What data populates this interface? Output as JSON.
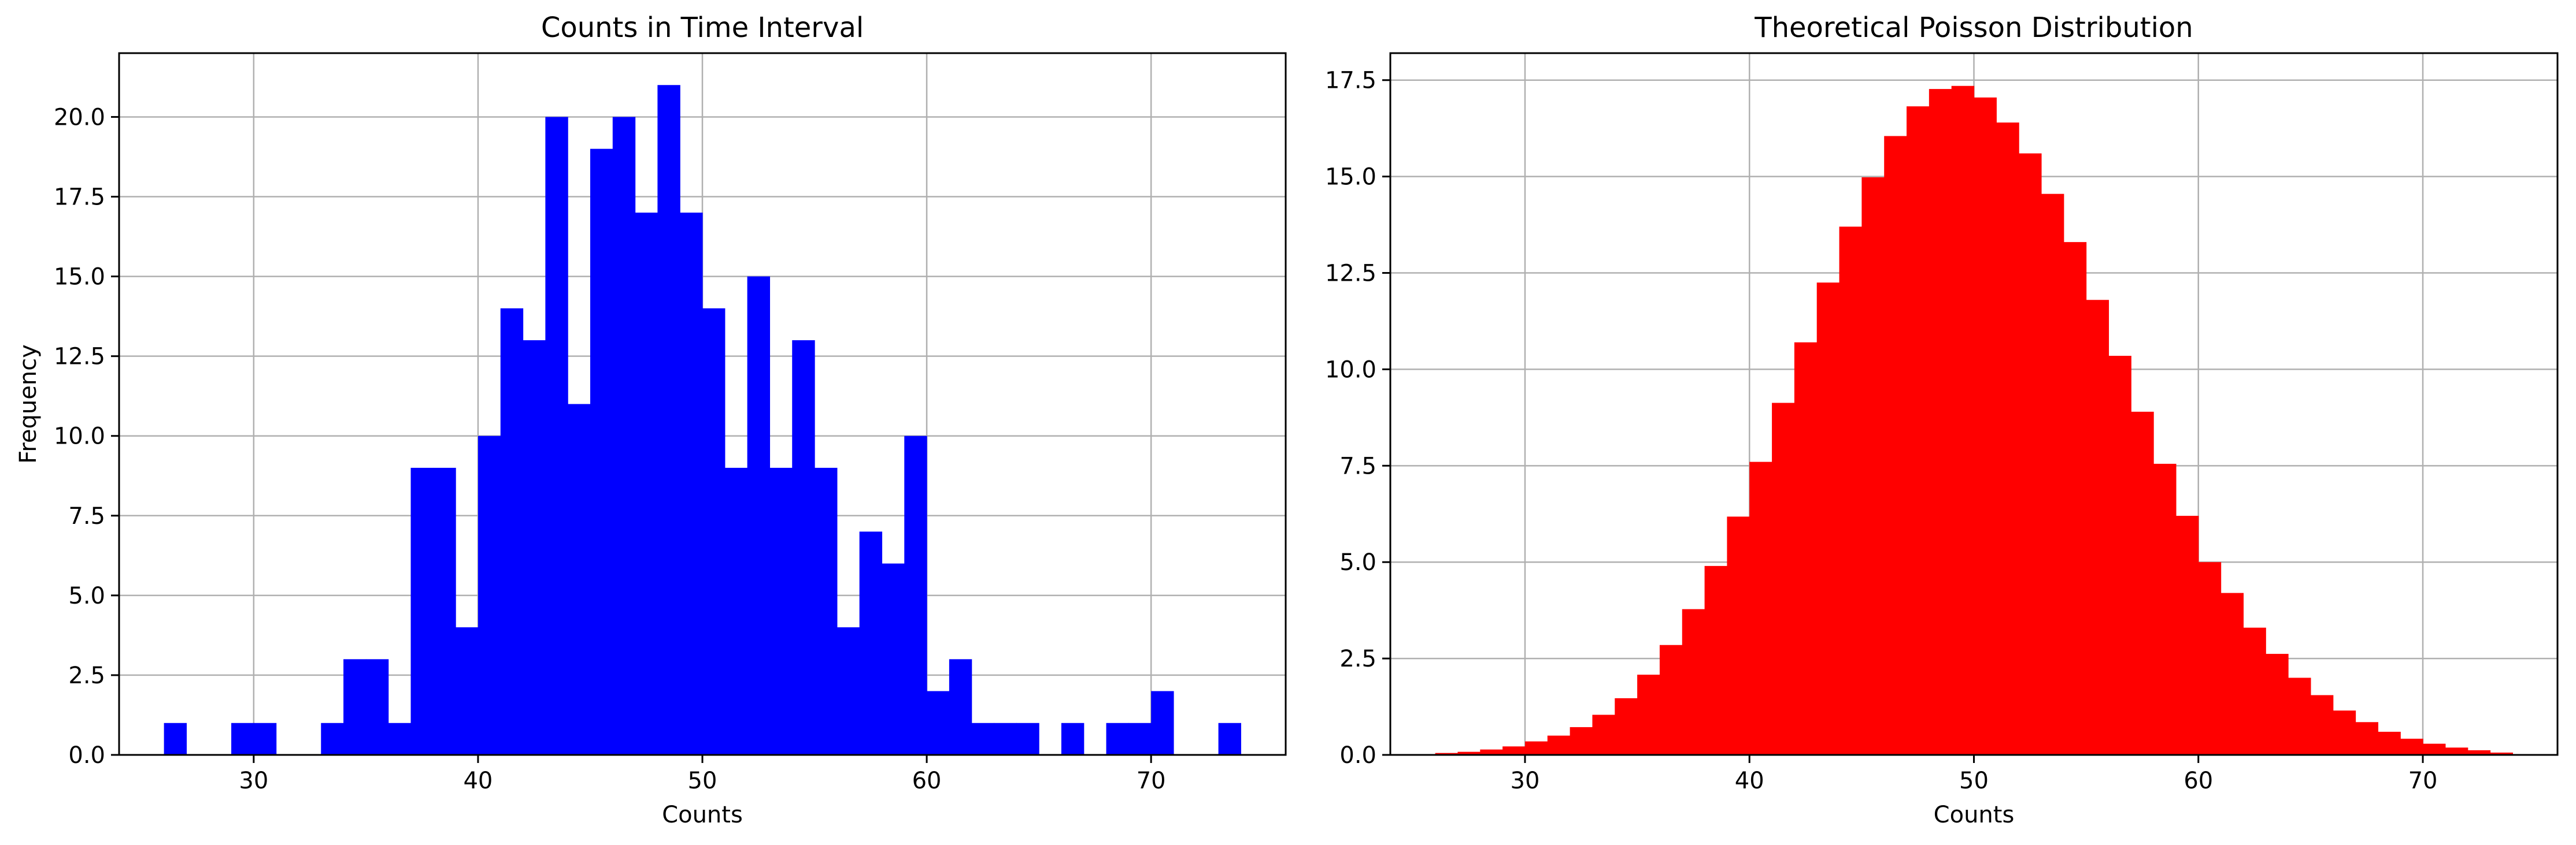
{
  "chart_data": [
    {
      "type": "bar",
      "title": "Counts in Time Interval",
      "xlabel": "Counts",
      "ylabel": "Frequency",
      "xlim": [
        24,
        76
      ],
      "ylim": [
        0,
        22
      ],
      "bin_width": 1,
      "grid": true,
      "color": "#0000ff",
      "xticks": [
        30,
        40,
        50,
        60,
        70
      ],
      "xtick_labels": [
        "30",
        "40",
        "50",
        "60",
        "70"
      ],
      "yticks": [
        0,
        2.5,
        5,
        7.5,
        10,
        12.5,
        15,
        17.5,
        20
      ],
      "ytick_labels": [
        "0.0",
        "2.5",
        "5.0",
        "7.5",
        "10.0",
        "12.5",
        "15.0",
        "17.5",
        "20.0"
      ],
      "x": [
        26.5,
        27.5,
        28.5,
        29.5,
        30.5,
        31.5,
        32.5,
        33.5,
        34.5,
        35.5,
        36.5,
        37.5,
        38.5,
        39.5,
        40.5,
        41.5,
        42.5,
        43.5,
        44.5,
        45.5,
        46.5,
        47.5,
        48.5,
        49.5,
        50.5,
        51.5,
        52.5,
        53.5,
        54.5,
        55.5,
        56.5,
        57.5,
        58.5,
        59.5,
        60.5,
        61.5,
        62.5,
        63.5,
        64.5,
        65.5,
        66.5,
        67.5,
        68.5,
        69.5,
        70.5,
        71.5,
        72.5,
        73.5
      ],
      "values": [
        1,
        0,
        0,
        1,
        1,
        0,
        0,
        1,
        3,
        3,
        1,
        9,
        9,
        4,
        10,
        14,
        13,
        20,
        11,
        19,
        20,
        17,
        21,
        17,
        14,
        9,
        15,
        9,
        13,
        9,
        4,
        7,
        6,
        10,
        2,
        3,
        1,
        1,
        1,
        0,
        1,
        0,
        1,
        1,
        2,
        0,
        0,
        1
      ]
    },
    {
      "type": "bar",
      "title": "Theoretical Poisson Distribution",
      "xlabel": "Counts",
      "ylabel": "",
      "xlim": [
        24,
        76
      ],
      "ylim": [
        0,
        18.2
      ],
      "bin_width": 1,
      "grid": true,
      "color": "#ff0000",
      "xticks": [
        30,
        40,
        50,
        60,
        70
      ],
      "xtick_labels": [
        "30",
        "40",
        "50",
        "60",
        "70"
      ],
      "yticks": [
        0,
        2.5,
        5,
        7.5,
        10,
        12.5,
        15,
        17.5
      ],
      "ytick_labels": [
        "0.0",
        "2.5",
        "5.0",
        "7.5",
        "10.0",
        "12.5",
        "15.0",
        "17.5"
      ],
      "x": [
        26.5,
        27.5,
        28.5,
        29.5,
        30.5,
        31.5,
        32.5,
        33.5,
        34.5,
        35.5,
        36.5,
        37.5,
        38.5,
        39.5,
        40.5,
        41.5,
        42.5,
        43.5,
        44.5,
        45.5,
        46.5,
        47.5,
        48.5,
        49.5,
        50.5,
        51.5,
        52.5,
        53.5,
        54.5,
        55.5,
        56.5,
        57.5,
        58.5,
        59.5,
        60.5,
        61.5,
        62.5,
        63.5,
        64.5,
        65.5,
        66.5,
        67.5,
        68.5,
        69.5,
        70.5,
        71.5,
        72.5,
        73.5
      ],
      "values": [
        0.05,
        0.08,
        0.14,
        0.22,
        0.35,
        0.5,
        0.72,
        1.04,
        1.47,
        2.08,
        2.85,
        3.78,
        4.9,
        6.18,
        7.6,
        9.13,
        10.7,
        12.25,
        13.7,
        14.98,
        16.05,
        16.82,
        17.27,
        17.35,
        17.05,
        16.4,
        15.6,
        14.55,
        13.3,
        11.8,
        10.35,
        8.9,
        7.55,
        6.2,
        5.0,
        4.2,
        3.3,
        2.62,
        2.0,
        1.55,
        1.15,
        0.85,
        0.6,
        0.42,
        0.29,
        0.19,
        0.12,
        0.06
      ]
    }
  ]
}
